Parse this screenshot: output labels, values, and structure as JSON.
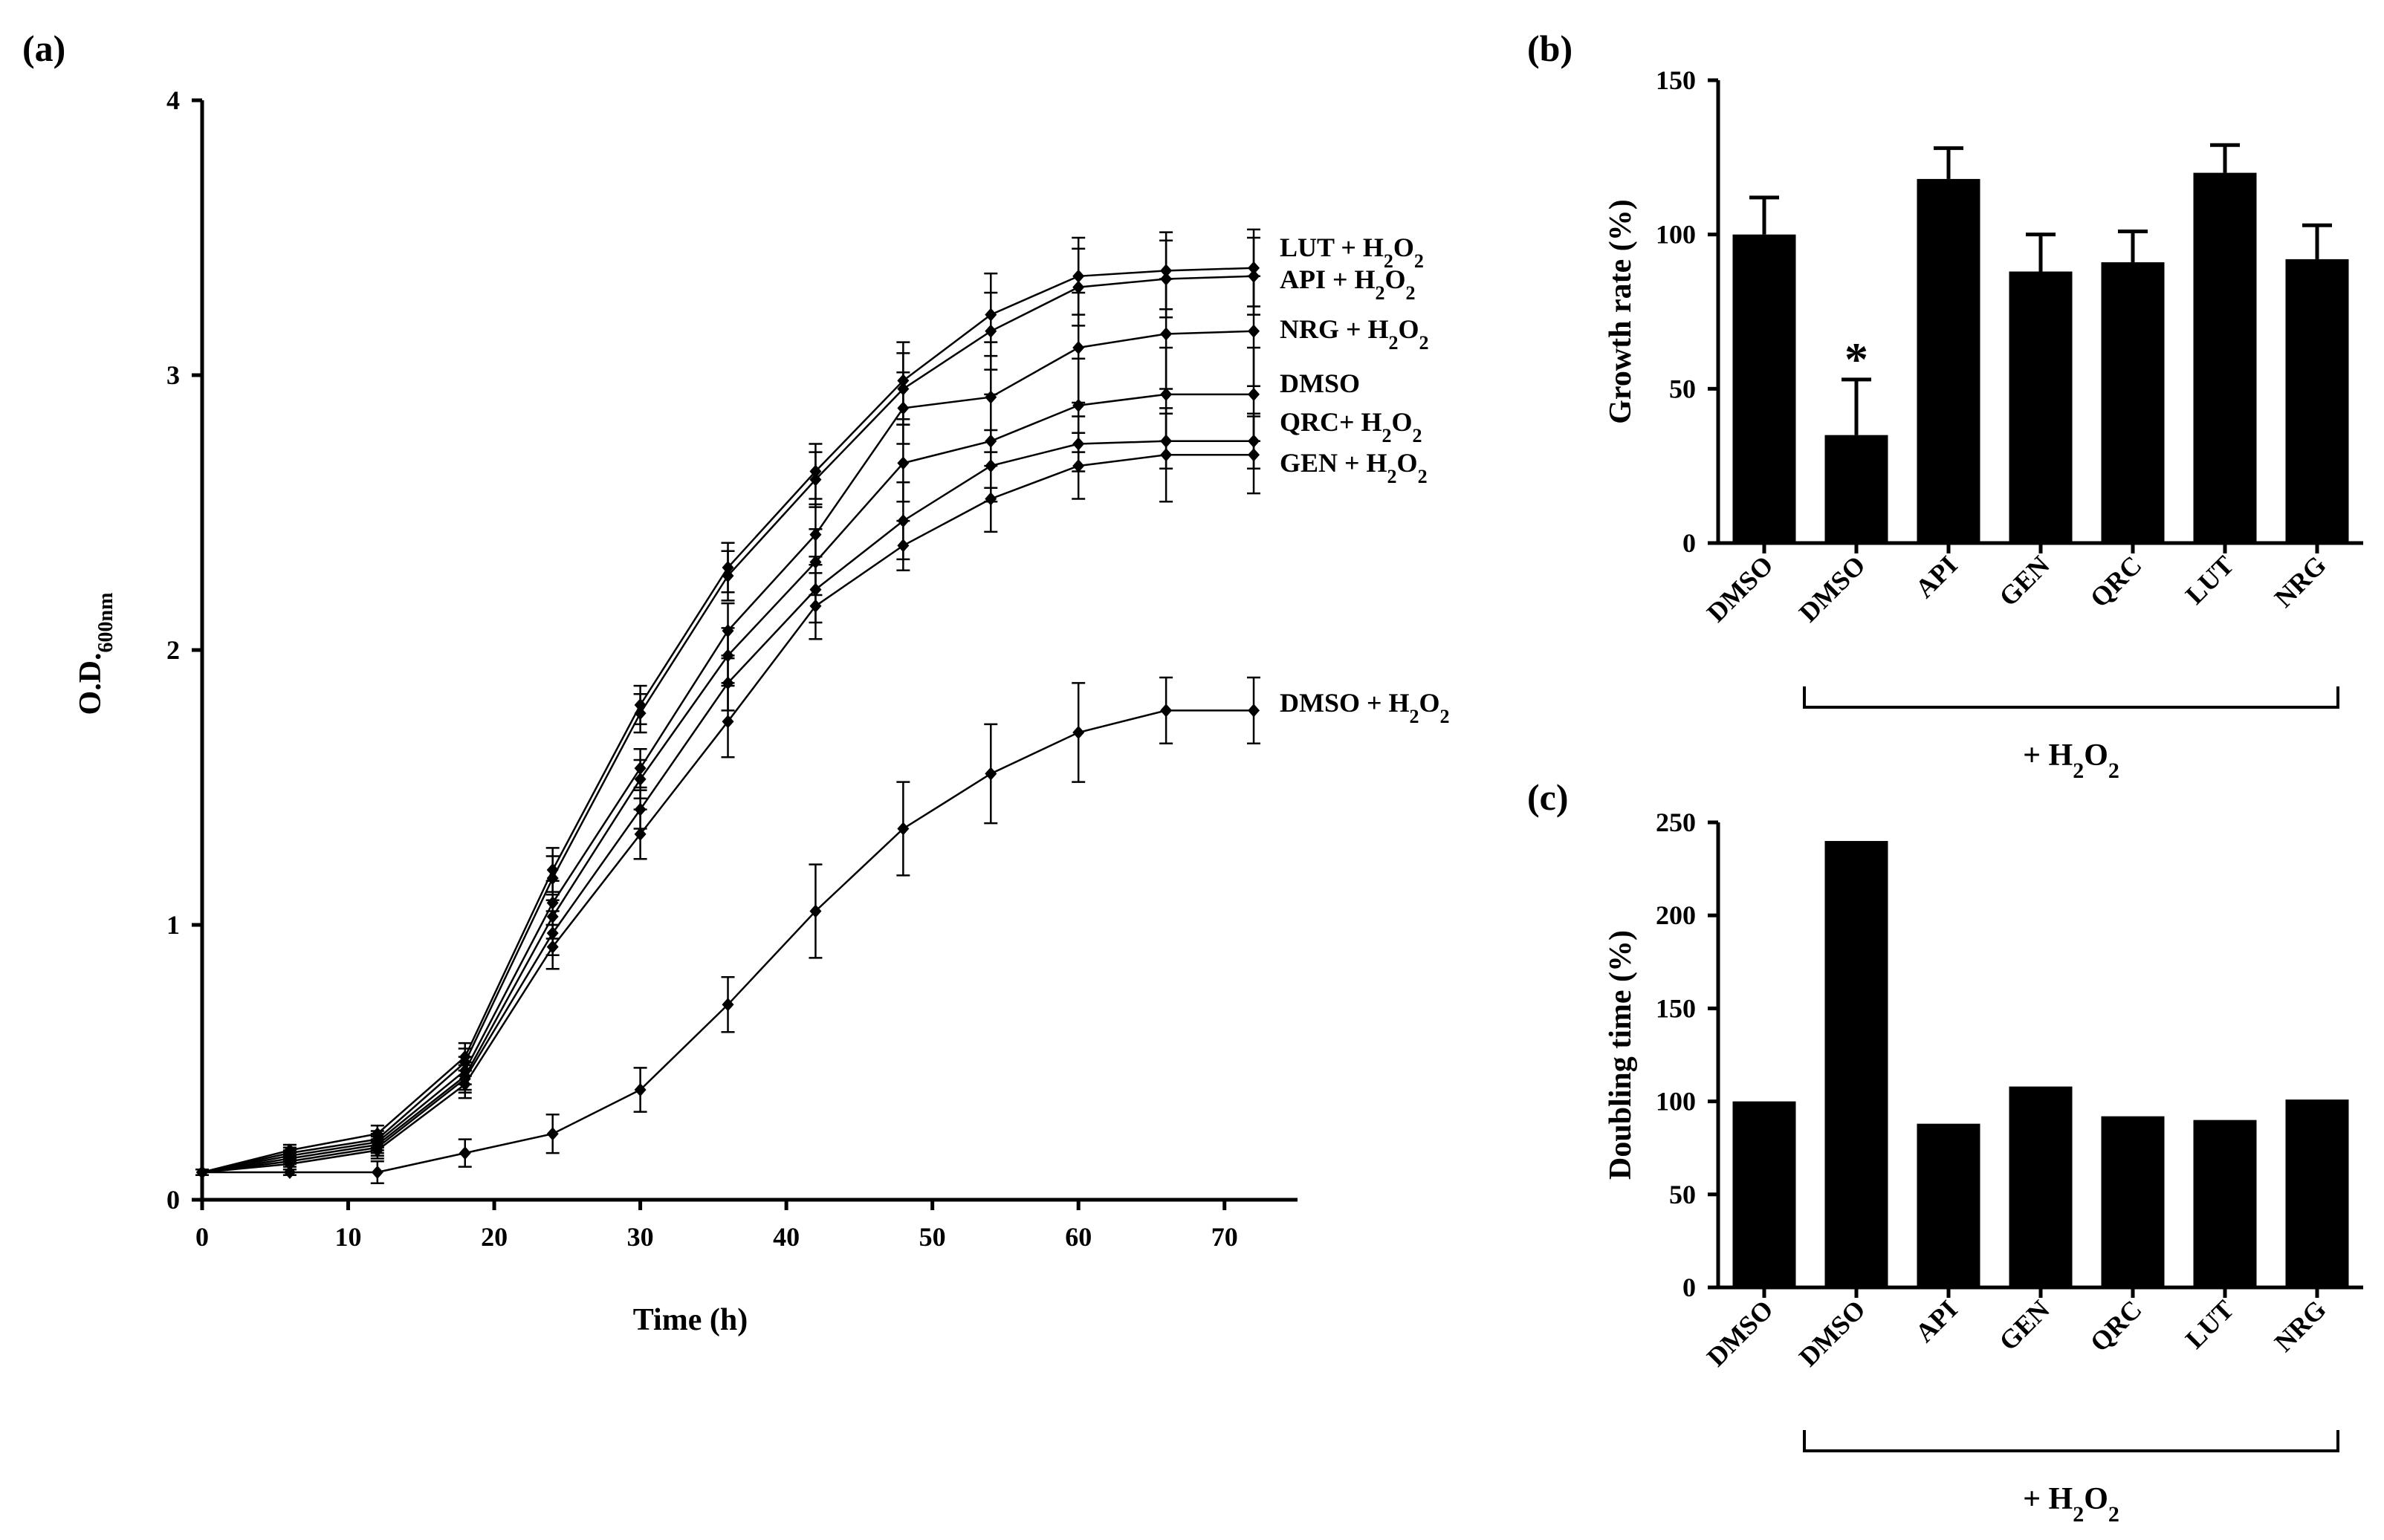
{
  "chart_data": [
    {
      "panel": "(a)",
      "type": "line",
      "xlabel": "Time (h)",
      "ylabel": "O.D.600nm",
      "xlim": [
        0,
        75
      ],
      "ylim": [
        0,
        4
      ],
      "xticks": [
        0,
        10,
        20,
        30,
        40,
        50,
        60,
        70
      ],
      "yticks": [
        0,
        1,
        2,
        3,
        4
      ],
      "x": [
        0,
        6,
        12,
        18,
        24,
        30,
        36,
        42,
        48,
        54,
        60,
        66,
        72
      ],
      "series": [
        {
          "name": "LUT + H2O2",
          "values": [
            0.1,
            0.18,
            0.24,
            0.52,
            1.2,
            1.8,
            2.3,
            2.65,
            2.98,
            3.22,
            3.36,
            3.38,
            3.39
          ],
          "err": [
            0.01,
            0.02,
            0.03,
            0.05,
            0.08,
            0.07,
            0.09,
            0.1,
            0.14,
            0.15,
            0.14,
            0.14,
            0.14
          ]
        },
        {
          "name": "API + H2O2",
          "values": [
            0.1,
            0.17,
            0.22,
            0.5,
            1.17,
            1.77,
            2.27,
            2.62,
            2.95,
            3.16,
            3.32,
            3.35,
            3.36
          ],
          "err": [
            0.01,
            0.02,
            0.03,
            0.05,
            0.08,
            0.07,
            0.09,
            0.1,
            0.13,
            0.14,
            0.14,
            0.14,
            0.14
          ]
        },
        {
          "name": "NRG + H2O2",
          "values": [
            0.1,
            0.16,
            0.21,
            0.47,
            1.08,
            1.57,
            2.07,
            2.42,
            2.88,
            2.92,
            3.1,
            3.15,
            3.16
          ],
          "err": [
            0.01,
            0.02,
            0.03,
            0.05,
            0.08,
            0.07,
            0.1,
            0.11,
            0.13,
            0.2,
            0.2,
            0.2,
            0.2
          ]
        },
        {
          "name": "DMSO",
          "values": [
            0.1,
            0.15,
            0.2,
            0.45,
            1.03,
            1.53,
            1.98,
            2.32,
            2.68,
            2.76,
            2.89,
            2.93,
            2.93
          ],
          "err": [
            0.01,
            0.02,
            0.03,
            0.05,
            0.08,
            0.07,
            0.1,
            0.12,
            0.14,
            0.17,
            0.17,
            0.17,
            0.17
          ]
        },
        {
          "name": "QRC+ H2O2",
          "values": [
            0.1,
            0.14,
            0.19,
            0.44,
            0.97,
            1.42,
            1.88,
            2.22,
            2.47,
            2.67,
            2.75,
            2.76,
            2.76
          ],
          "err": [
            0.01,
            0.02,
            0.03,
            0.05,
            0.08,
            0.07,
            0.1,
            0.12,
            0.14,
            0.13,
            0.1,
            0.1,
            0.1
          ]
        },
        {
          "name": "GEN + H2O2",
          "values": [
            0.1,
            0.13,
            0.18,
            0.42,
            0.92,
            1.33,
            1.74,
            2.16,
            2.38,
            2.55,
            2.67,
            2.71,
            2.71
          ],
          "err": [
            0.01,
            0.02,
            0.03,
            0.05,
            0.08,
            0.09,
            0.13,
            0.12,
            0.09,
            0.12,
            0.12,
            0.17,
            0.14
          ]
        },
        {
          "name": "DMSO + H2O2",
          "values": [
            0.1,
            0.1,
            0.1,
            0.17,
            0.24,
            0.4,
            0.71,
            1.05,
            1.35,
            1.55,
            1.7,
            1.78,
            1.78
          ],
          "err": [
            0.01,
            0.01,
            0.04,
            0.05,
            0.07,
            0.08,
            0.1,
            0.17,
            0.17,
            0.18,
            0.18,
            0.12,
            0.12
          ]
        }
      ]
    },
    {
      "panel": "(b)",
      "type": "bar",
      "ylabel": "Growth rate (%)",
      "ylim": [
        0,
        150
      ],
      "yticks": [
        0,
        50,
        100,
        150
      ],
      "categories": [
        "DMSO",
        "DMSO",
        "API",
        "GEN",
        "QRC",
        "LUT",
        "NRG"
      ],
      "values": [
        100,
        35,
        118,
        88,
        91,
        120,
        92
      ],
      "err": [
        12,
        18,
        10,
        12,
        10,
        9,
        11
      ],
      "annotations": [
        {
          "category_index": 1,
          "text": "*"
        }
      ],
      "bracket_label": "+ H2O2"
    },
    {
      "panel": "(c)",
      "type": "bar",
      "ylabel": "Doubling time (%)",
      "ylim": [
        0,
        250
      ],
      "yticks": [
        0,
        50,
        100,
        150,
        200,
        250
      ],
      "categories": [
        "DMSO",
        "DMSO",
        "API",
        "GEN",
        "QRC",
        "LUT",
        "NRG"
      ],
      "values": [
        100,
        240,
        88,
        108,
        92,
        90,
        101
      ],
      "bracket_label": "+ H2O2"
    }
  ]
}
